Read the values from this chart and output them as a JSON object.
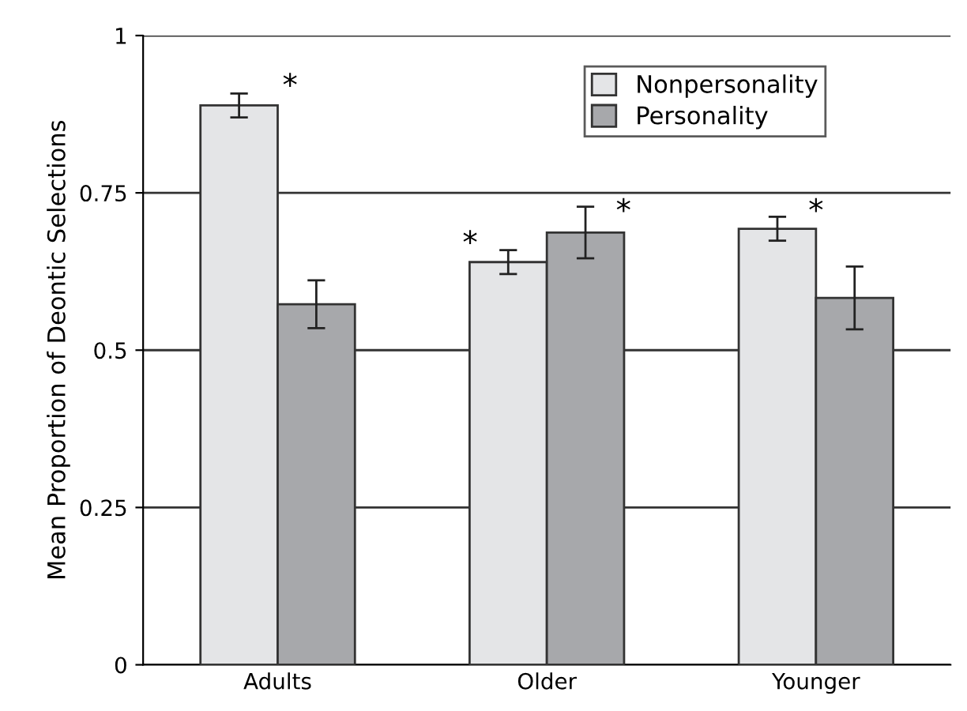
{
  "chart_data": {
    "type": "bar",
    "ylabel": "Mean Proportion of Deontic Selections",
    "categories": [
      "Adults",
      "Older",
      "Younger"
    ],
    "series": [
      {
        "name": "Nonpersonality",
        "color": "#e4e5e7",
        "values": [
          0.889,
          0.64,
          0.693
        ],
        "errors": [
          0.019,
          0.019,
          0.019
        ]
      },
      {
        "name": "Personality",
        "color": "#a7a8ab",
        "values": [
          0.573,
          0.687,
          0.583
        ],
        "errors": [
          0.038,
          0.041,
          0.05
        ]
      }
    ],
    "ylim": [
      0,
      1
    ],
    "yticks": [
      0,
      0.25,
      0.5,
      0.75,
      1
    ],
    "grid": "y",
    "legend": "top right",
    "annotations": [
      "*",
      "*",
      "*",
      "*"
    ]
  }
}
